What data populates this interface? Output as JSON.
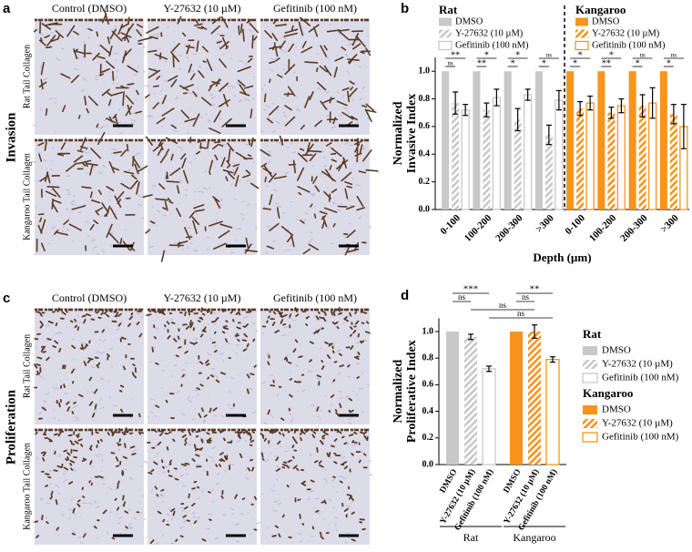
{
  "micrographs": {
    "columns": [
      "Control (DMSO)",
      "Y-27632 (10 µM)",
      "Gefitinib (100 nM)"
    ],
    "rows": [
      "Rat Tail Collagen",
      "Kangaroo Tail Collagen"
    ],
    "panels": [
      {
        "label": "a",
        "title": "Invasion"
      },
      {
        "label": "c",
        "title": "Proliferation"
      }
    ]
  },
  "chart_data": [
    {
      "label": "b",
      "type": "bar",
      "groups": [
        "Rat",
        "Kangaroo"
      ],
      "categories": [
        "0-100",
        "100-200",
        "200-300",
        ">300"
      ],
      "x_label": "Depth (µm)",
      "y_label": [
        "Normalized",
        "Invasive Index"
      ],
      "ylim": [
        0,
        1.1
      ],
      "yticks": [
        {
          "value": 0,
          "label": "0.0"
        },
        0.2,
        0.4,
        0.6,
        0.8,
        {
          "value": 1,
          "label": "1.0"
        }
      ],
      "series": [
        {
          "name": "DMSO",
          "group": 0,
          "color": "#c8c8c8",
          "fill": "solid",
          "values": [
            1,
            1,
            1,
            1
          ]
        },
        {
          "name": "Y-27632 (10 µM)",
          "group": 0,
          "color": "#c8c8c8",
          "fill": "hatch",
          "values": [
            0.77,
            0.72,
            0.65,
            0.54
          ],
          "errors": [
            0.08,
            0.05,
            0.08,
            0.07
          ],
          "significance": [
            "ns",
            "**",
            "*",
            "*"
          ]
        },
        {
          "name": "Gefitinib (100 nM)",
          "group": 0,
          "color": "#c8c8c8",
          "fill": "outline",
          "values": [
            0.72,
            0.81,
            0.83,
            0.79
          ],
          "errors": [
            0.04,
            0.06,
            0.04,
            0.07
          ],
          "significance": [
            "**",
            "*",
            "*",
            "ns"
          ]
        },
        {
          "name": "DMSO",
          "group": 1,
          "color": "#f7941d",
          "fill": "solid",
          "values": [
            1,
            1,
            1,
            1
          ]
        },
        {
          "name": "Y-27632 (10 µM)",
          "group": 1,
          "color": "#f7941d",
          "fill": "hatch",
          "values": [
            0.73,
            0.7,
            0.75,
            0.69
          ],
          "errors": [
            0.05,
            0.04,
            0.08,
            0.07
          ],
          "significance": [
            "*",
            "**",
            "*",
            "*"
          ]
        },
        {
          "name": "Gefitinib (100 nM)",
          "group": 1,
          "color": "#f7941d",
          "fill": "outline",
          "values": [
            0.77,
            0.75,
            0.77,
            0.6
          ],
          "errors": [
            0.05,
            0.05,
            0.11,
            0.16
          ],
          "significance": [
            "*",
            "*",
            "ns",
            "ns"
          ]
        }
      ]
    },
    {
      "label": "d",
      "type": "bar",
      "groups": [
        "Rat",
        "Kangaroo"
      ],
      "y_label": [
        "Normalized",
        "Proliferative Index"
      ],
      "ylim": [
        0,
        1.1
      ],
      "yticks": [
        {
          "value": 0,
          "label": "0.0"
        },
        0.2,
        0.4,
        0.6,
        0.8,
        {
          "value": 1,
          "label": "1.0"
        }
      ],
      "series": [
        {
          "name": "DMSO",
          "group": 0,
          "color": "#c8c8c8",
          "fill": "solid",
          "values": [
            1.0
          ]
        },
        {
          "name": "Y-27632 (10 µM)",
          "group": 0,
          "color": "#c8c8c8",
          "fill": "hatch",
          "values": [
            0.96
          ],
          "errors": [
            0.02
          ]
        },
        {
          "name": "Gefitinib (100 nM)",
          "group": 0,
          "color": "#c8c8c8",
          "fill": "outline",
          "values": [
            0.72
          ],
          "errors": [
            0.02
          ]
        },
        {
          "name": "DMSO",
          "group": 1,
          "color": "#f7941d",
          "fill": "solid",
          "values": [
            1.0
          ]
        },
        {
          "name": "Y-27632 (10 µM)",
          "group": 1,
          "color": "#f7941d",
          "fill": "hatch",
          "values": [
            1.0
          ],
          "errors": [
            0.05
          ]
        },
        {
          "name": "Gefitinib (100 nM)",
          "group": 1,
          "color": "#f7941d",
          "fill": "outline",
          "values": [
            0.79
          ],
          "errors": [
            0.02
          ]
        }
      ],
      "comparisons": [
        {
          "series": [
            0,
            2
          ],
          "label": "***"
        },
        {
          "series": [
            3,
            5
          ],
          "label": "**"
        },
        {
          "series": [
            0,
            1
          ],
          "label": "ns"
        },
        {
          "series": [
            3,
            4
          ],
          "label": "ns"
        },
        {
          "series": [
            1,
            4
          ],
          "label": "ns"
        },
        {
          "series": [
            2,
            5
          ],
          "label": "ns"
        }
      ]
    }
  ]
}
